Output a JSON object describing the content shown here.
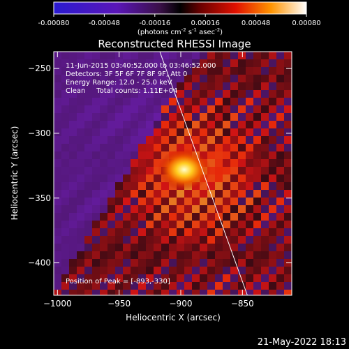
{
  "chart_data": {
    "type": "heatmap",
    "title": "Reconstructed RHESSI Image",
    "xlabel": "Heliocentric X (arcsec)",
    "ylabel": "Heliocentric Y (arcsec)",
    "xlim": [
      -1003,
      -810
    ],
    "ylim": [
      -425,
      -237
    ],
    "xticks": [
      -1000,
      -950,
      -900,
      -850
    ],
    "yticks": [
      -250,
      -300,
      -350,
      -400
    ],
    "colorbar": {
      "range": [
        -0.0008,
        0.0008
      ],
      "ticks": [
        "-0.00080",
        "-0.00048",
        "-0.00016",
        "0.00016",
        "0.00048",
        "0.00080"
      ],
      "label": "(photons cm",
      "label_exp1": "-2",
      "label_mid": " s",
      "label_exp2": "-1",
      "label_mid2": " asec",
      "label_exp3": "-2",
      "label_end": ")"
    },
    "annotations": [
      "11-Jun-2015 03:40:52.000 to 03:46:52.000",
      "Detectors: 3F 5F 6F 7F 8F 9F, Att 0",
      "Energy Range: 12.0 - 25.0 keV",
      "Clean     Total counts: 1.11E+04"
    ],
    "peak_label": "Position of Peak = [-893,-330]",
    "peak": [
      -893,
      -330
    ],
    "limb_line": [
      [
        -917,
        -237
      ],
      [
        -846,
        -425
      ]
    ],
    "footer_timestamp": "21-May-2022 18:13"
  }
}
